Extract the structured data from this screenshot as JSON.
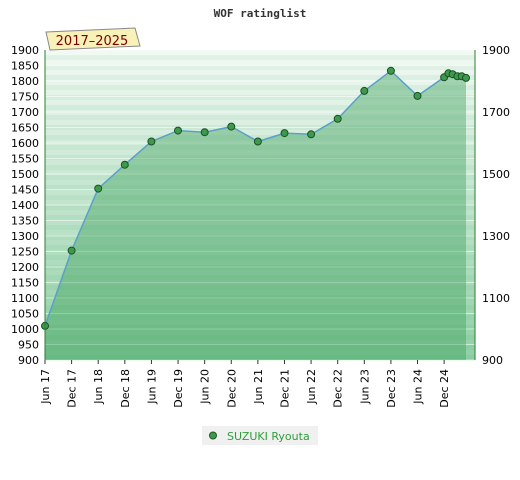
{
  "chart_data": {
    "type": "area",
    "title": "WOF ratinglist",
    "period_label": "2017–2025",
    "x_labels": [
      "Jun 17",
      "Dec 17",
      "Jun 18",
      "Dec 18",
      "Jun 19",
      "Dec 19",
      "Jun 20",
      "Dec 20",
      "Jun 21",
      "Dec 21",
      "Jun 22",
      "Dec 22",
      "Jun 23",
      "Dec 23",
      "Jun 24",
      "Dec 24"
    ],
    "y_left_ticks": [
      900,
      950,
      1000,
      1050,
      1100,
      1150,
      1200,
      1250,
      1300,
      1350,
      1400,
      1450,
      1500,
      1550,
      1600,
      1650,
      1700,
      1750,
      1800,
      1850,
      1900
    ],
    "y_right_ticks": [
      900,
      1100,
      1300,
      1500,
      1700,
      1900
    ],
    "ylim": [
      900,
      1900
    ],
    "xlim": [
      2017.42,
      2025.5
    ],
    "series": [
      {
        "name": "SUZUKI Ryouta",
        "color": "#5aa0c8",
        "marker_color": "#3c9a4c",
        "points": [
          {
            "x": 2017.42,
            "y": 1010
          },
          {
            "x": 2017.92,
            "y": 1253
          },
          {
            "x": 2018.42,
            "y": 1453
          },
          {
            "x": 2018.92,
            "y": 1530
          },
          {
            "x": 2019.42,
            "y": 1605
          },
          {
            "x": 2019.92,
            "y": 1640
          },
          {
            "x": 2020.42,
            "y": 1635
          },
          {
            "x": 2020.92,
            "y": 1653
          },
          {
            "x": 2021.42,
            "y": 1605
          },
          {
            "x": 2021.92,
            "y": 1632
          },
          {
            "x": 2022.42,
            "y": 1628
          },
          {
            "x": 2022.92,
            "y": 1678
          },
          {
            "x": 2023.42,
            "y": 1768
          },
          {
            "x": 2023.92,
            "y": 1833
          },
          {
            "x": 2024.42,
            "y": 1752
          },
          {
            "x": 2024.92,
            "y": 1812
          },
          {
            "x": 2025.0,
            "y": 1825
          },
          {
            "x": 2025.08,
            "y": 1822
          },
          {
            "x": 2025.17,
            "y": 1815
          },
          {
            "x": 2025.25,
            "y": 1815
          },
          {
            "x": 2025.33,
            "y": 1810
          }
        ]
      }
    ],
    "grid": true,
    "legend": "bottom-center"
  }
}
